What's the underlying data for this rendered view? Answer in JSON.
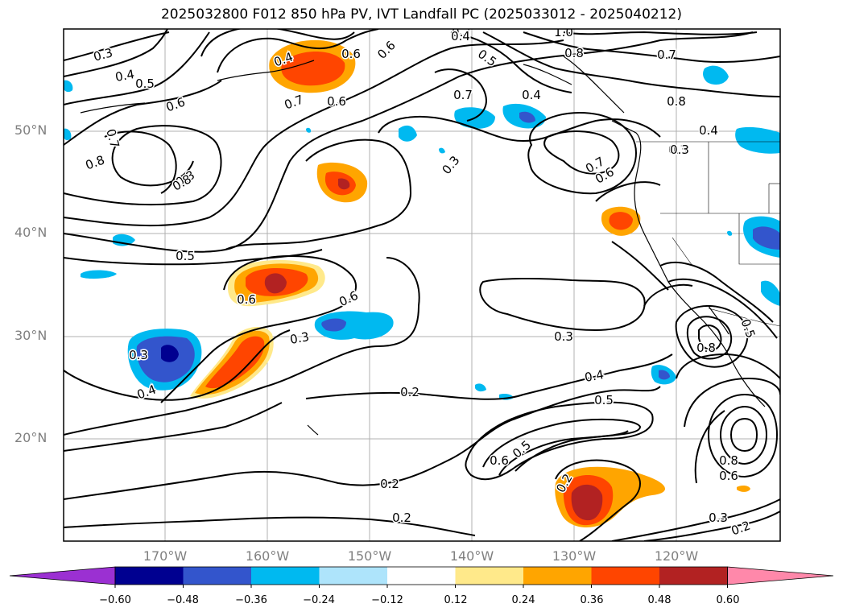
{
  "title": "2025032800 F012 850 hPa PV, IVT Landfall PC (2025033012 - 2025040212)",
  "map": {
    "lat_labels": [
      "50°N",
      "40°N",
      "30°N",
      "20°N"
    ],
    "lon_labels": [
      "170°W",
      "160°W",
      "150°W",
      "140°W",
      "130°W",
      "120°W"
    ],
    "contour_labels": [
      "0.3",
      "0.4",
      "0.5",
      "0.6",
      "0.8",
      "0.7",
      "0.8",
      "0.4",
      "1.0",
      "0.6",
      "0.8",
      "0.7",
      "0.5",
      "0.7",
      "0.4",
      "0.6",
      "0.7",
      "0.6",
      "0.8",
      "0.7",
      "0.4",
      "0.3",
      "0.8",
      "0.7",
      "0.6",
      "0.4",
      "0.3",
      "0.5",
      "0.6",
      "0.6",
      "0.3",
      "0.3",
      "0.4",
      "0.3",
      "0.2",
      "0.2",
      "0.2",
      "0.3",
      "0.4",
      "0.5",
      "0.5",
      "0.6",
      "0.2",
      "0.8",
      "0.5",
      "0.8",
      "0.6",
      "0.3",
      "0.2"
    ]
  },
  "colorbar": {
    "ticks": [
      "−0.60",
      "−0.48",
      "−0.36",
      "−0.24",
      "−0.12",
      "0.12",
      "0.24",
      "0.36",
      "0.48",
      "0.60"
    ],
    "colors": [
      "#9b30d2",
      "#000090",
      "#3355cc",
      "#00b9f0",
      "#aee4fb",
      "#ffffff",
      "#ffe98a",
      "#ffa500",
      "#ff4500",
      "#b22222",
      "#ff88aa"
    ]
  }
}
